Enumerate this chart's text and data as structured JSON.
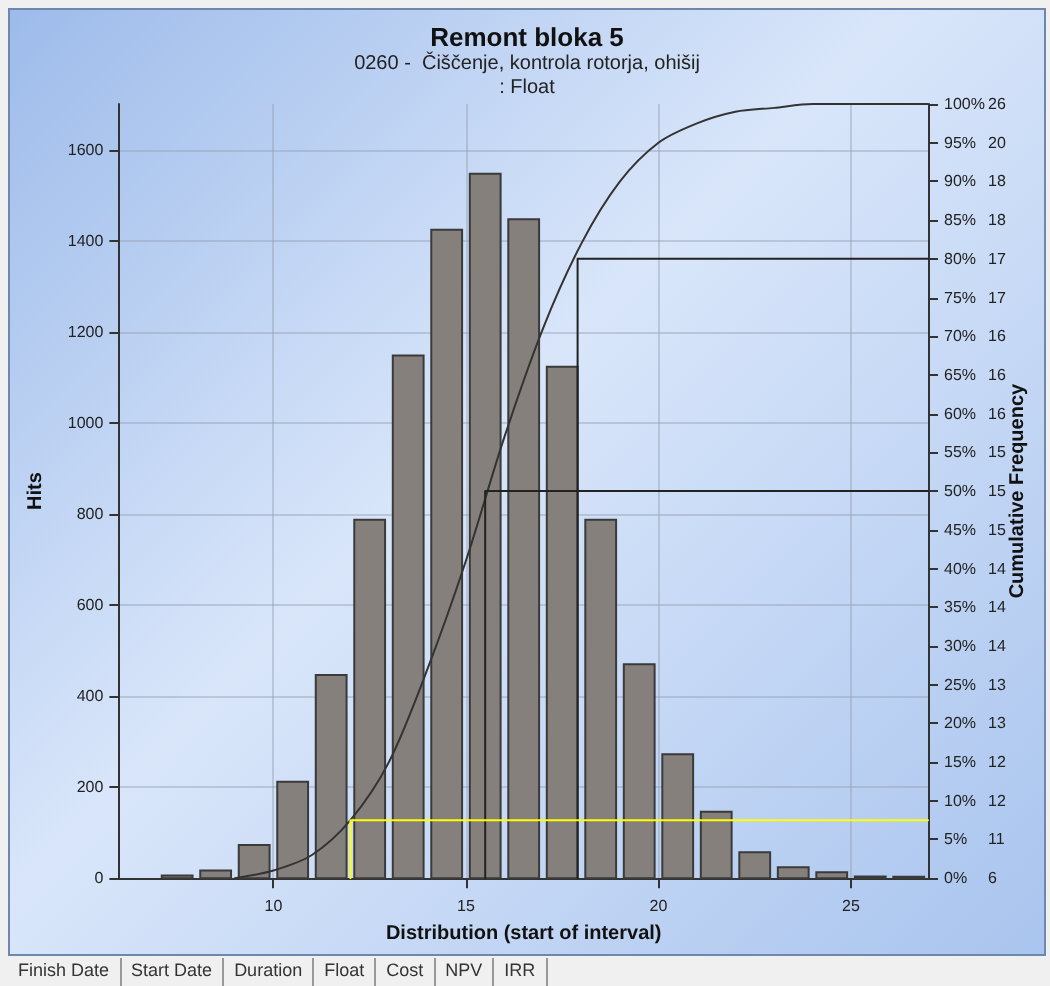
{
  "chart_data": {
    "type": "histogram",
    "title": "Remont bloka 5",
    "subtitle": "0260 -  Čiščenje, kontrola rotorja, ohišij\n: Float",
    "xlabel": "Distribution (start of interval)",
    "ylabel": "Hits",
    "y2label": "Cumulative Frequency",
    "bins": [
      7,
      8,
      9,
      10,
      11,
      12,
      13,
      14,
      15,
      16,
      17,
      18,
      19,
      20,
      21,
      22,
      23,
      24,
      25,
      26,
      27
    ],
    "series": [
      {
        "type": "histogram",
        "color": "#85807c",
        "values": [
          6,
          17,
          73,
          212,
          446,
          787,
          1148,
          1424,
          1547,
          1447,
          1123,
          787,
          470,
          272,
          146,
          57,
          24,
          13,
          4,
          3
        ]
      },
      {
        "type": "line",
        "axis": "y2",
        "color": "#333333",
        "x": [
          9,
          10,
          11,
          12,
          13,
          14,
          15,
          16,
          17,
          18,
          19,
          20,
          21,
          22,
          23,
          24,
          27
        ],
        "values": [
          0,
          1,
          3,
          7.5,
          15,
          27,
          41,
          57,
          71,
          82,
          90,
          95,
          97.5,
          99,
          99.5,
          100,
          100
        ]
      },
      {
        "type": "line",
        "axis": "y2",
        "color": "#222222",
        "x": [
          15.5,
          15.5,
          27
        ],
        "values": [
          0,
          50,
          50
        ]
      },
      {
        "type": "line",
        "axis": "y2",
        "color": "#222222",
        "x": [
          17.9,
          17.9,
          27
        ],
        "values": [
          0,
          80,
          80
        ]
      },
      {
        "type": "line",
        "axis": "y2",
        "color": "#ffff00",
        "x": [
          12,
          12,
          27
        ],
        "values": [
          0,
          7.5,
          7.5
        ]
      }
    ],
    "xlim": [
      6,
      27
    ],
    "xticks": [
      10,
      15,
      20,
      25
    ],
    "ylim": [
      0,
      1700
    ],
    "yticks": [
      0,
      200,
      400,
      600,
      800,
      1000,
      1200,
      1400,
      1600
    ],
    "y2lim": [
      0,
      100
    ],
    "y2ticks": [
      {
        "value": 0,
        "label": "0%"
      },
      {
        "value": 5,
        "label": "5%"
      },
      {
        "value": 10,
        "label": "10%"
      },
      {
        "value": 15,
        "label": "15%"
      },
      {
        "value": 20,
        "label": "20%"
      },
      {
        "value": 25,
        "label": "25%"
      },
      {
        "value": 30,
        "label": "30%"
      },
      {
        "value": 35,
        "label": "35%"
      },
      {
        "value": 40,
        "label": "40%"
      },
      {
        "value": 45,
        "label": "45%"
      },
      {
        "value": 50,
        "label": "50%"
      },
      {
        "value": 55,
        "label": "55%"
      },
      {
        "value": 60,
        "label": "60%"
      },
      {
        "value": 65,
        "label": "65%"
      },
      {
        "value": 70,
        "label": "70%"
      },
      {
        "value": 75,
        "label": "75%"
      },
      {
        "value": 80,
        "label": "80%"
      },
      {
        "value": 85,
        "label": "85%"
      },
      {
        "value": 90,
        "label": "90%"
      },
      {
        "value": 95,
        "label": "95%"
      },
      {
        "value": 100,
        "label": "100%"
      }
    ],
    "y2_categories": [
      "26",
      "20",
      "18",
      "18",
      "17",
      "17",
      "16",
      "16",
      "16",
      "15",
      "15",
      "15",
      "14",
      "14",
      "14",
      "13",
      "13",
      "12",
      "12",
      "11",
      "6"
    ],
    "grid": true,
    "marker": "none",
    "line_style": "solid",
    "annotations": [
      "Finish Date",
      "Start Date",
      "Duration",
      "Float",
      "Cost",
      "NPV",
      "IRR"
    ]
  }
}
